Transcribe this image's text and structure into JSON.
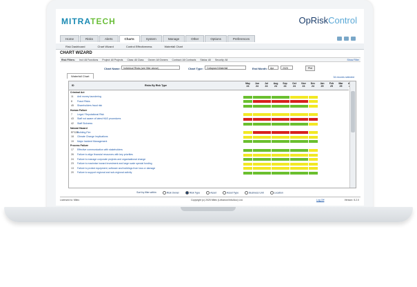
{
  "brand": {
    "logo_a": "MITRA",
    "logo_b": "TECH",
    "product_a": "OpRisk",
    "product_b": "Control"
  },
  "tabs": [
    "Home",
    "Risks",
    "Alerts",
    "Charts",
    "System",
    "Manage",
    "Other",
    "Options",
    "Preferences"
  ],
  "active_tab": "Charts",
  "subnav": [
    "Risk Dashboard",
    "Chart Wizard",
    "Control Effectiveness",
    "Waterfall Chart"
  ],
  "page_title": "CHART WIZARD",
  "filters": {
    "label": "Risk Filters:",
    "items": [
      "Incl: All Functions",
      "Project: All Projects",
      "Class: All Class",
      "Owner: All Owners",
      "Contract: All Contracts",
      "Status: All",
      "Security: All"
    ],
    "show": "Show Filter"
  },
  "chart_row": {
    "chart_name_label": "Chart Name:",
    "chart_name_value": "Individual Risks (see filter above)",
    "chart_type_label": "Chart Type:",
    "chart_type_value": "Collapsed Waterfall",
    "end_month_label": "End Month:",
    "month": "Apr",
    "year": "2025",
    "button": "Plot"
  },
  "waterfall_tab": "Waterfall Chart",
  "selected_note": "34 records selected",
  "grid": {
    "col_id": "ID",
    "col_name": "Risks By Risk Type",
    "months": [
      [
        "May",
        "24"
      ],
      [
        "Jun",
        "24"
      ],
      [
        "Jul",
        "24"
      ],
      [
        "Aug",
        "24"
      ],
      [
        "Sep",
        "24"
      ],
      [
        "Oct",
        "24"
      ],
      [
        "Nov",
        "24"
      ],
      [
        "Dec",
        "24"
      ],
      [
        "Jan",
        "25"
      ],
      [
        "Feb",
        "25"
      ],
      [
        "Mar",
        "25"
      ],
      [
        "Apr",
        "25"
      ]
    ],
    "rows": [
      {
        "type": "cat",
        "name": "Criminal Act"
      },
      {
        "type": "risk",
        "id": "11",
        "name": "Anti money laundering",
        "cells": "GGGGGYYY"
      },
      {
        "type": "risk",
        "id": "8",
        "name": "Fraud Risks",
        "cells": "GRRRRRRY"
      },
      {
        "type": "risk",
        "id": "45",
        "name": "Shareholders fraud risk",
        "cells": "GGGGGGGY"
      },
      {
        "type": "cat",
        "name": "Human Failure"
      },
      {
        "type": "risk",
        "id": "7",
        "name": "Legal / Reputational Risk",
        "cells": "YYYYYYYY"
      },
      {
        "type": "risk",
        "id": "43",
        "name": "Staff not aware of latest H&S procedures",
        "cells": "RRRRRRRR"
      },
      {
        "type": "risk",
        "id": "42",
        "name": "Staff Sickness",
        "cells": "GGGGGGGY"
      },
      {
        "type": "cat",
        "name": "Natural Hazard"
      },
      {
        "type": "risk",
        "id": "EF128",
        "name": "Building Fire",
        "cells": "YRRRRRRY"
      },
      {
        "type": "risk",
        "id": "18",
        "name": "Climate Change Implications",
        "cells": "YYYYYYYY"
      },
      {
        "type": "risk",
        "id": "19",
        "name": "Major Incident Management",
        "cells": "GGGGGGGG"
      },
      {
        "type": "cat",
        "name": "Process Failure"
      },
      {
        "type": "risk",
        "id": "17",
        "name": "Effective communication with stakeholders",
        "cells": "GGGGGGGY"
      },
      {
        "type": "risk",
        "id": "26",
        "name": "Failure to align financial resources with key priorities",
        "cells": "YYYYYYYY"
      },
      {
        "type": "risk",
        "id": "24",
        "name": "Failure to manage corporate projects and organisational change",
        "cells": "GGGGGGGY"
      },
      {
        "type": "risk",
        "id": "23",
        "name": "Failure to maximise inward investment and large scale special funding",
        "cells": "YYYYYYYY"
      },
      {
        "type": "risk",
        "id": "13",
        "name": "Failure to protect equipment, software and buildings from loss or damage",
        "cells": "YYYYYYYY"
      },
      {
        "type": "risk",
        "id": "20",
        "name": "Failure to support regional and sub-regional activity",
        "cells": "GGGGGGGG"
      }
    ]
  },
  "sort": {
    "label": "Sort by filter within",
    "options": [
      "Risk Owner",
      "Risk Type",
      "Asset",
      "Asset Type",
      "Business Unit",
      "Location"
    ],
    "selected": "Risk Type"
  },
  "footer": {
    "licensed": "Licensed to: Mitec",
    "copyright": "Copyright (c) 2025 Mitec (Lebanon/Info/Acc) Ltd.",
    "logoff": "Log Off",
    "version": "Version: 5.2.0"
  },
  "colors": {
    "green": "#6abf2e",
    "yellow": "#f2e824",
    "red": "#d8201c",
    "accent": "#1a8ab3"
  }
}
